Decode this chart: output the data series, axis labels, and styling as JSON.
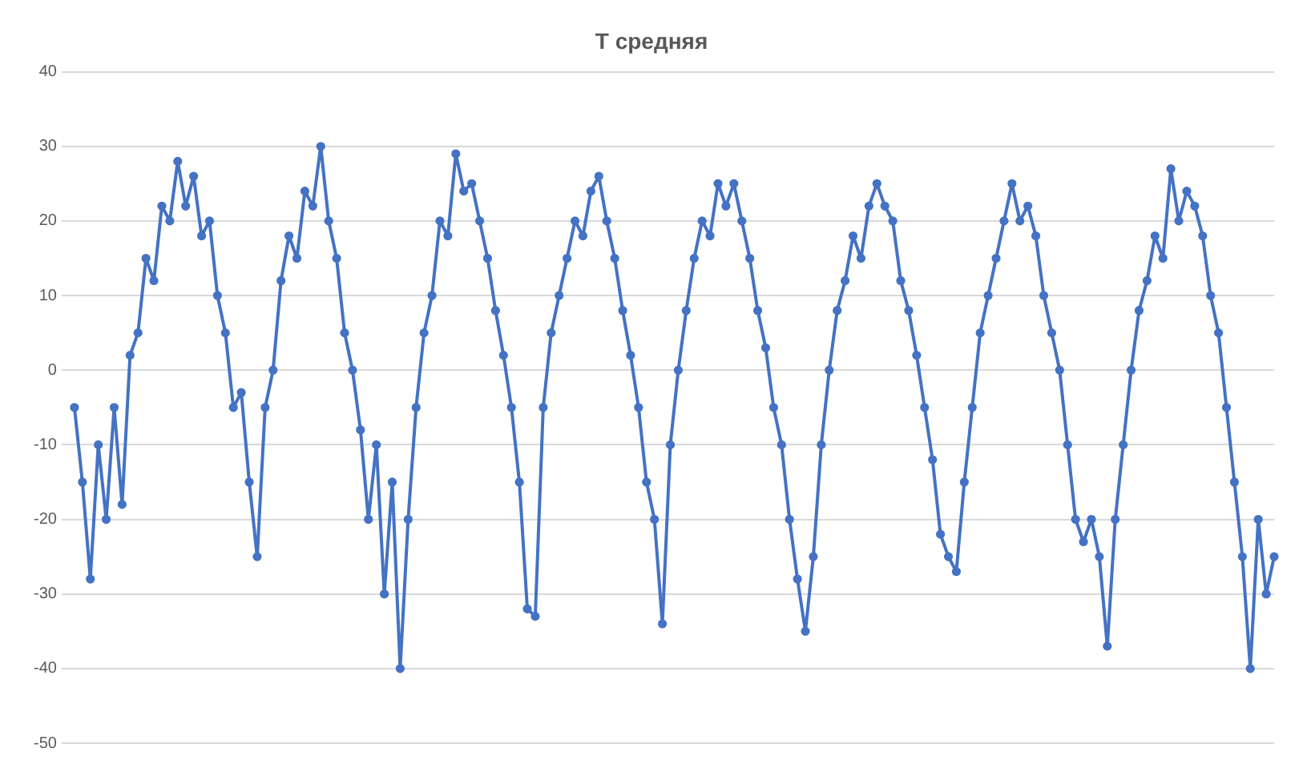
{
  "chart_data": {
    "type": "line",
    "title": "T средняя",
    "marker": "circle",
    "grid": "y",
    "legend": false,
    "tick_labels": "y",
    "ylim": [
      -50,
      40
    ],
    "yticks": [
      -50,
      -40,
      -30,
      -20,
      -10,
      0,
      10,
      20,
      30,
      40
    ],
    "categories": [
      null,
      null,
      null,
      null,
      null,
      null,
      null,
      null,
      null,
      null,
      null,
      null,
      null,
      null,
      null,
      null,
      null,
      null,
      null,
      null,
      null,
      null,
      null,
      null,
      null,
      null,
      null,
      null,
      null,
      null,
      null,
      null,
      null,
      null,
      null,
      null,
      null,
      null,
      null,
      null,
      null,
      null,
      null,
      null,
      null,
      null,
      null,
      null,
      null,
      null,
      null,
      null,
      null,
      null,
      null,
      null,
      null,
      null,
      null,
      null,
      null,
      null,
      null,
      null,
      null,
      null,
      null,
      null,
      null,
      null,
      null,
      null,
      null,
      null,
      null,
      null,
      null,
      null,
      null,
      null,
      null,
      null,
      null,
      null,
      null,
      null,
      null,
      null,
      null,
      null,
      null,
      null,
      null,
      null,
      null,
      null,
      null,
      null,
      null,
      null,
      null,
      null,
      null,
      null,
      null,
      null,
      null,
      null,
      null,
      null,
      null,
      null,
      null,
      null,
      null,
      null,
      null,
      null,
      null,
      null,
      null,
      null,
      null,
      null,
      null,
      null,
      null,
      null,
      null,
      null,
      null,
      null,
      null,
      null,
      null,
      null,
      null,
      null,
      null,
      null,
      null,
      null,
      null,
      null,
      null,
      null,
      null,
      null,
      null,
      null,
      null,
      null
    ],
    "series": [
      {
        "color": "#4472c4",
        "values": [
          -5,
          -15,
          -28,
          -10,
          -20,
          -5,
          -18,
          2,
          5,
          15,
          12,
          22,
          20,
          28,
          22,
          26,
          18,
          20,
          10,
          5,
          -5,
          -3,
          -15,
          -25,
          -5,
          0,
          12,
          18,
          15,
          24,
          22,
          30,
          20,
          15,
          5,
          0,
          -8,
          -20,
          -10,
          -30,
          -15,
          -40,
          -20,
          -5,
          5,
          10,
          20,
          18,
          29,
          24,
          25,
          20,
          15,
          8,
          2,
          -5,
          -15,
          -32,
          -33,
          -5,
          5,
          10,
          15,
          20,
          18,
          24,
          26,
          20,
          15,
          8,
          2,
          -5,
          -15,
          -20,
          -34,
          -10,
          0,
          8,
          15,
          20,
          18,
          25,
          22,
          25,
          20,
          15,
          8,
          3,
          -5,
          -10,
          -20,
          -28,
          -35,
          -25,
          -10,
          0,
          8,
          12,
          18,
          15,
          22,
          25,
          22,
          20,
          12,
          8,
          2,
          -5,
          -12,
          -22,
          -25,
          -27,
          -15,
          -5,
          5,
          10,
          15,
          20,
          25,
          20,
          22,
          18,
          10,
          5,
          0,
          -10,
          -20,
          -23,
          -20,
          -25,
          -37,
          -20,
          -10,
          0,
          8,
          12,
          18,
          15,
          27,
          20,
          24,
          22,
          18,
          10,
          5,
          -5,
          -15,
          -25,
          -40,
          -20,
          -30,
          -25
        ]
      }
    ]
  }
}
